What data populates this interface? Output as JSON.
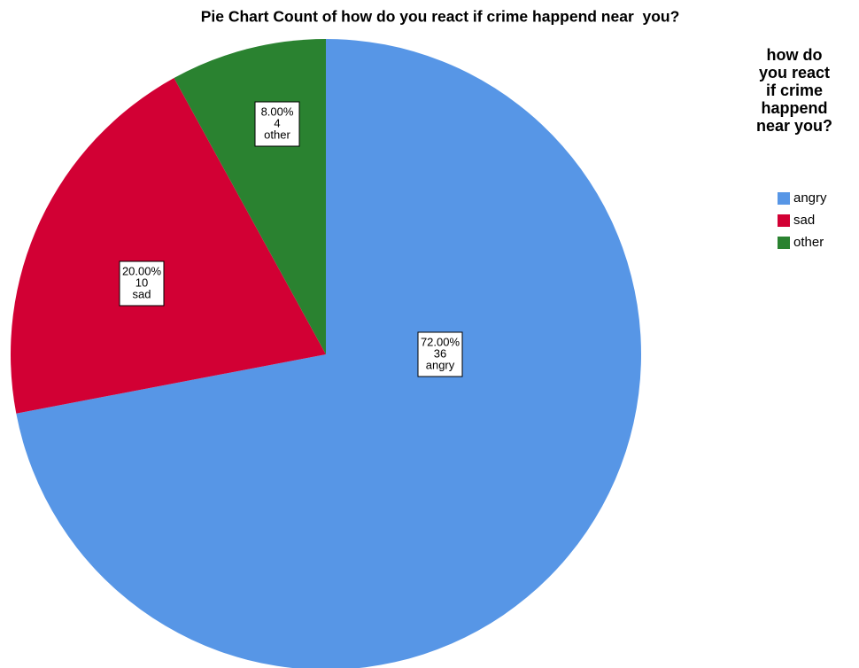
{
  "chart_data": {
    "type": "pie",
    "title": "Pie Chart Count of how do you react if crime happend near  you?",
    "legend_title": "how do you react if crime happend near you?",
    "categories": [
      "angry",
      "sad",
      "other"
    ],
    "values": [
      72,
      20,
      8
    ],
    "value_labels": [
      "72.00%",
      "20.00%",
      "8.00%"
    ],
    "counts": [
      36,
      10,
      4
    ],
    "colors": [
      "#5796e6",
      "#d20034",
      "#2a8230"
    ],
    "legend": "right"
  }
}
